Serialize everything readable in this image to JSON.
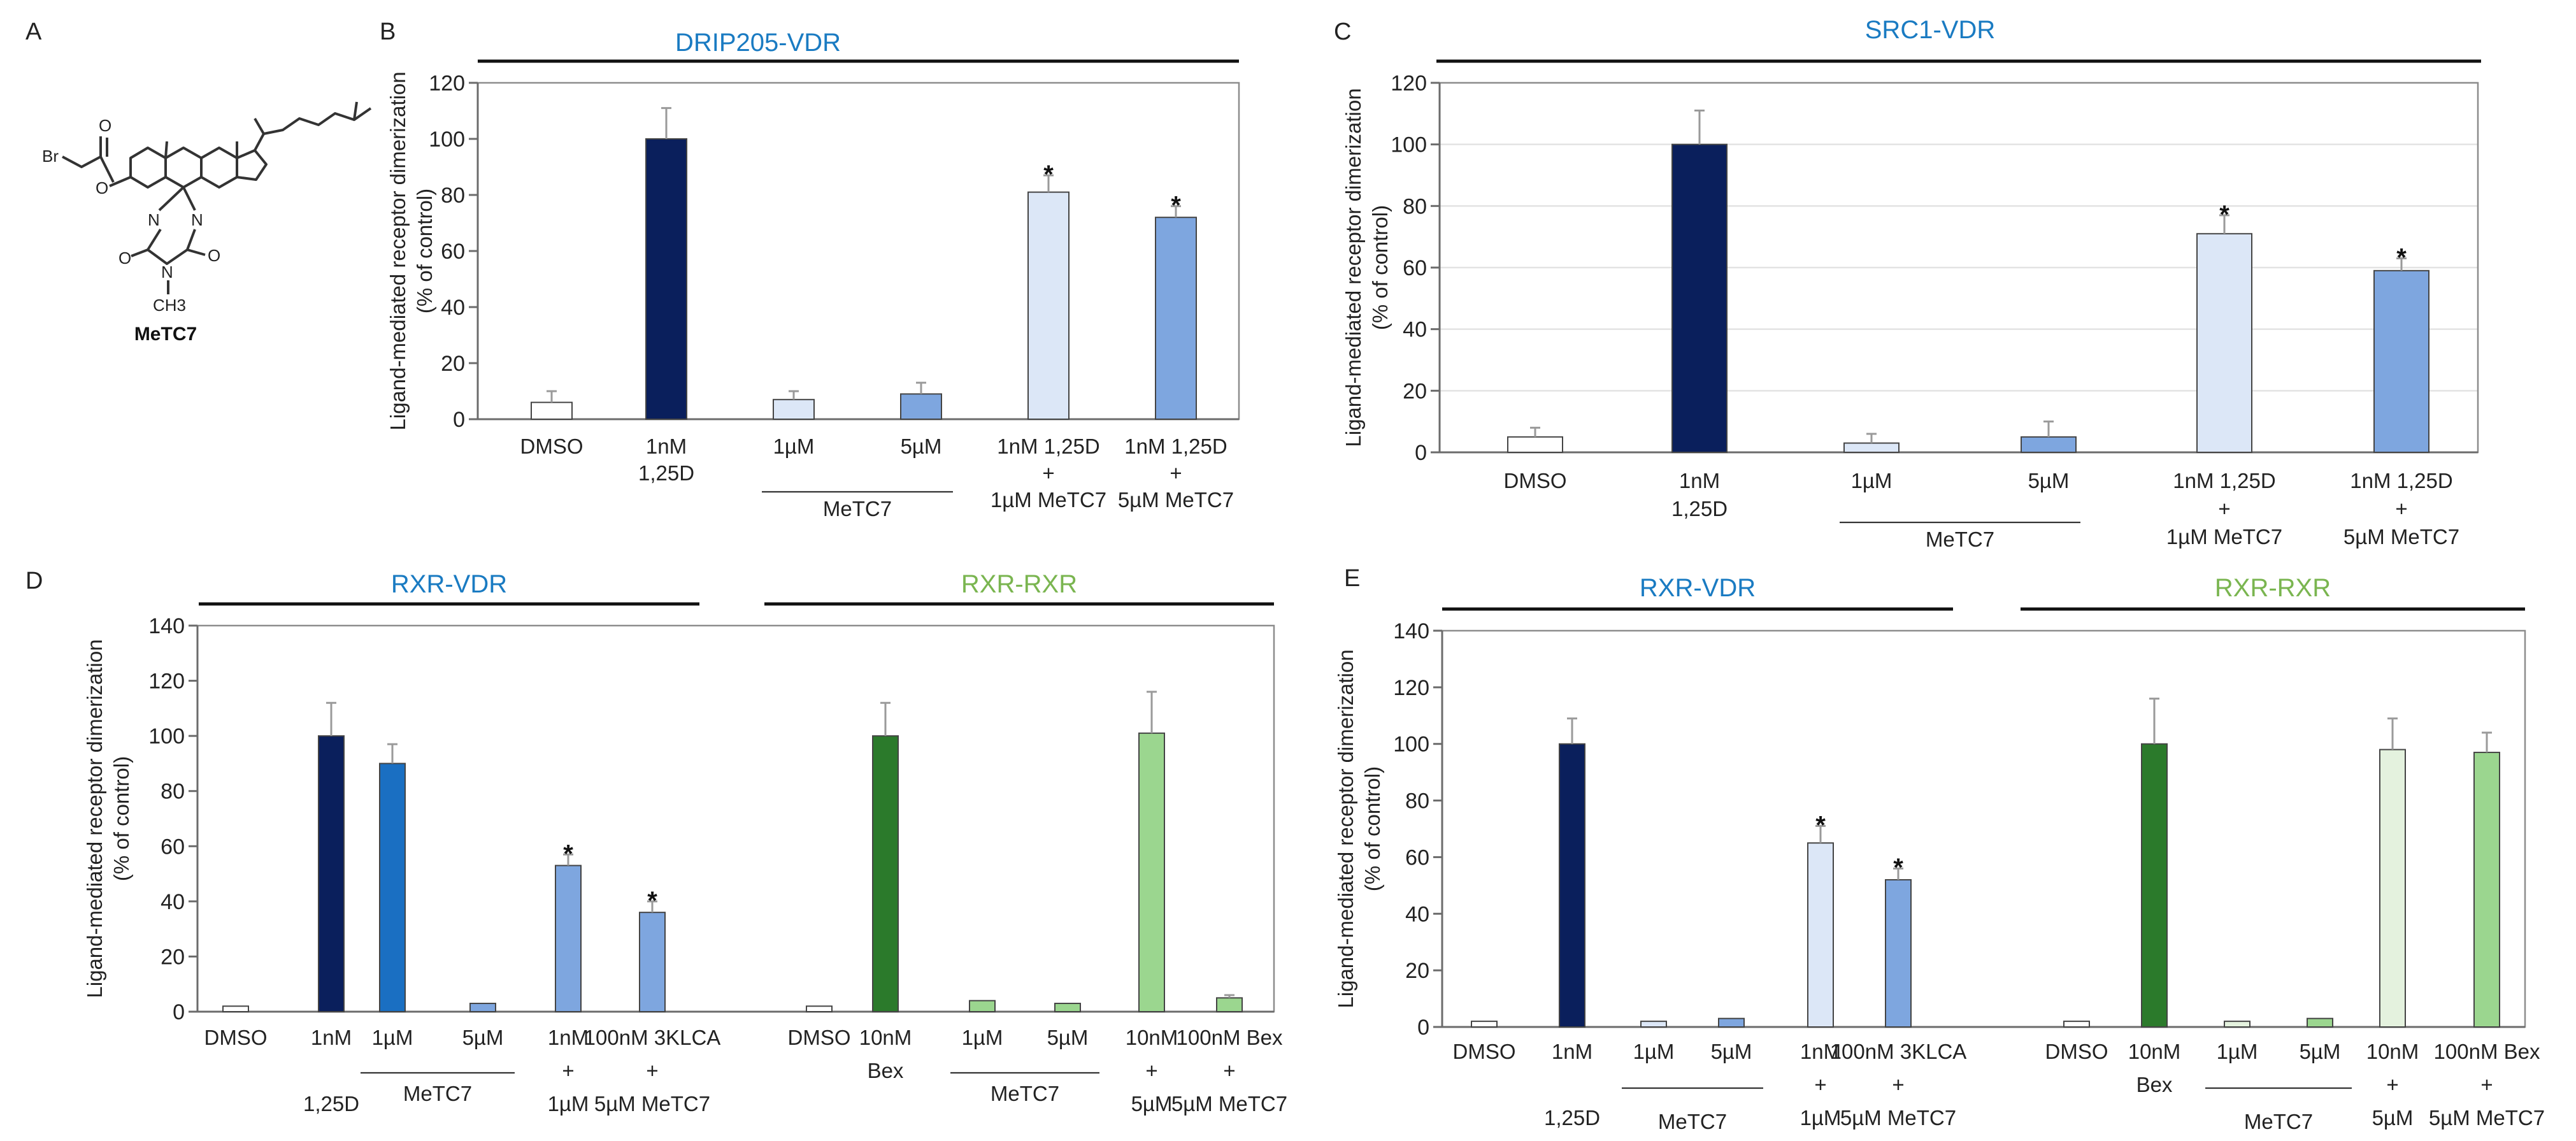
{
  "colors": {
    "navy": "#0a1f5c",
    "blue": "#1a6fc2",
    "light_blue": "#dce7f7",
    "mid_blue": "#7ea6df",
    "dark_green": "#2b7a2b",
    "light_green": "#9bd68f",
    "pale_green": "#e4f2de",
    "white": "#ffffff",
    "title_blue": "#1a7bc2",
    "title_green": "#7ab550"
  },
  "panel_A": {
    "letter": "A",
    "compound_name": "MeTC7",
    "atom_labels": [
      "Br",
      "O",
      "O",
      "N",
      "N",
      "N",
      "O",
      "O",
      "CH3"
    ]
  },
  "chart_data": [
    {
      "panel": "B",
      "type": "bar",
      "top_title": "DRIP205-VDR",
      "ylabel": [
        "Ligand-mediated receptor dimerization",
        "(% of control)"
      ],
      "ylim": [
        0,
        120
      ],
      "yticks": [
        0,
        20,
        40,
        60,
        80,
        100,
        120
      ],
      "grid": false,
      "categories": [
        [
          "DMSO"
        ],
        [
          "1nM",
          "1,25D"
        ],
        [
          "1µM"
        ],
        [
          "5µM"
        ],
        [
          "1nM 1,25D",
          "+",
          "1µM MeTC7"
        ],
        [
          "1nM 1,25D",
          "+",
          "5µM MeTC7"
        ]
      ],
      "values": [
        6,
        100,
        7,
        9,
        81,
        72
      ],
      "errors": [
        4,
        11,
        3,
        4,
        6,
        4
      ],
      "colors": [
        "#ffffff",
        "#0a1f5c",
        "#dce7f7",
        "#7ea6df",
        "#dce7f7",
        "#7ea6df"
      ],
      "significant": [
        false,
        false,
        false,
        false,
        true,
        true
      ],
      "groups": [
        {
          "label": "MeTC7",
          "from": 2,
          "to": 3
        }
      ]
    },
    {
      "panel": "C",
      "type": "bar",
      "top_title": "SRC1-VDR",
      "ylabel": [
        "Ligand-mediated receptor dimerization",
        "(% of control)"
      ],
      "ylim": [
        0,
        120
      ],
      "yticks": [
        0,
        20,
        40,
        60,
        80,
        100,
        120
      ],
      "grid": true,
      "categories": [
        [
          "DMSO"
        ],
        [
          "1nM",
          "1,25D"
        ],
        [
          "1µM"
        ],
        [
          "5µM"
        ],
        [
          "1nM 1,25D",
          "+",
          "1µM MeTC7"
        ],
        [
          "1nM 1,25D",
          "+",
          "5µM MeTC7"
        ]
      ],
      "values": [
        5,
        100,
        3,
        5,
        71,
        59
      ],
      "errors": [
        3,
        11,
        3,
        5,
        6,
        4
      ],
      "colors": [
        "#ffffff",
        "#0a1f5c",
        "#dce7f7",
        "#7ea6df",
        "#dce7f7",
        "#7ea6df"
      ],
      "significant": [
        false,
        false,
        false,
        false,
        true,
        true
      ],
      "groups": [
        {
          "label": "MeTC7",
          "from": 2,
          "to": 3
        }
      ]
    },
    {
      "panel": "D",
      "type": "bar",
      "top_titles": [
        {
          "text": "RXR-VDR",
          "color": "#1a7bc2",
          "from": 0,
          "to": 5
        },
        {
          "text": "RXR-RXR",
          "color": "#7ab550",
          "from": 7,
          "to": 11
        }
      ],
      "ylabel": [
        "Ligand-mediated receptor dimerization",
        "(% of control)"
      ],
      "ylim": [
        0,
        140
      ],
      "yticks": [
        0,
        20,
        40,
        60,
        80,
        100,
        120,
        140
      ],
      "grid": false,
      "categories": [
        [
          "DMSO"
        ],
        [
          "1nM",
          "",
          "1,25D"
        ],
        [
          "1µM"
        ],
        [
          "5µM"
        ],
        [
          "1nM",
          "+",
          "1µM"
        ],
        [
          "100nM 3KLCA",
          "+",
          "5µM MeTC7"
        ],
        [
          "DMSO"
        ],
        [
          "10nM",
          "Bex"
        ],
        [
          "1µM"
        ],
        [
          "5µM"
        ],
        [
          "10nM",
          "+",
          "5µM"
        ],
        [
          "100nM Bex",
          "+",
          "5µM MeTC7"
        ]
      ],
      "values": [
        2,
        100,
        90,
        3,
        53,
        36,
        2,
        100,
        4,
        3,
        101,
        5
      ],
      "errors": [
        0,
        12,
        7,
        0,
        4,
        4,
        0,
        12,
        0,
        0,
        15,
        1
      ],
      "colors": [
        "#ffffff",
        "#0a1f5c",
        "#1a6fc2",
        "#7ea6df",
        "#7ea6df",
        "#7ea6df",
        "#ffffff",
        "#2b7a2b",
        "#9bd68f",
        "#9bd68f",
        "#9bd68f",
        "#9bd68f"
      ],
      "significant": [
        false,
        false,
        false,
        false,
        true,
        true,
        false,
        false,
        false,
        false,
        false,
        false
      ],
      "groups": [
        {
          "label": "MeTC7",
          "from": 2,
          "to": 3
        },
        {
          "label": "MeTC7",
          "from": 8,
          "to": 9
        }
      ]
    },
    {
      "panel": "E",
      "type": "bar",
      "top_titles": [
        {
          "text": "RXR-VDR",
          "color": "#1a7bc2",
          "from": 0,
          "to": 5
        },
        {
          "text": "RXR-RXR",
          "color": "#7ab550",
          "from": 6,
          "to": 11
        }
      ],
      "ylabel": [
        "Ligand-mediated receptor dimerization",
        "(% of control)"
      ],
      "ylim": [
        0,
        140
      ],
      "yticks": [
        0,
        20,
        40,
        60,
        80,
        100,
        120,
        140
      ],
      "grid": false,
      "categories": [
        [
          "DMSO"
        ],
        [
          "1nM",
          "",
          "1,25D"
        ],
        [
          "1µM"
        ],
        [
          "5µM"
        ],
        [
          "1nM",
          "+",
          "1µM"
        ],
        [
          "100nM 3KLCA",
          "+",
          "5µM MeTC7"
        ],
        [
          "DMSO"
        ],
        [
          "10nM",
          "Bex"
        ],
        [
          "1µM"
        ],
        [
          "5µM"
        ],
        [
          "10nM",
          "+",
          "5µM"
        ],
        [
          "100nM Bex",
          "+",
          "5µM MeTC7"
        ]
      ],
      "values": [
        2,
        100,
        2,
        3,
        65,
        52,
        2,
        100,
        2,
        3,
        98,
        97
      ],
      "errors": [
        0,
        9,
        0,
        0,
        6,
        4,
        0,
        16,
        0,
        0,
        11,
        7
      ],
      "colors": [
        "#ffffff",
        "#0a1f5c",
        "#dce7f7",
        "#7ea6df",
        "#dce7f7",
        "#7ea6df",
        "#ffffff",
        "#2b7a2b",
        "#e4f2de",
        "#9bd68f",
        "#e4f2de",
        "#9bd68f"
      ],
      "significant": [
        false,
        false,
        false,
        false,
        true,
        true,
        false,
        false,
        false,
        false,
        false,
        false
      ],
      "groups": [
        {
          "label": "MeTC7",
          "from": 2,
          "to": 3
        },
        {
          "label": "MeTC7",
          "from": 8,
          "to": 9
        }
      ]
    }
  ]
}
